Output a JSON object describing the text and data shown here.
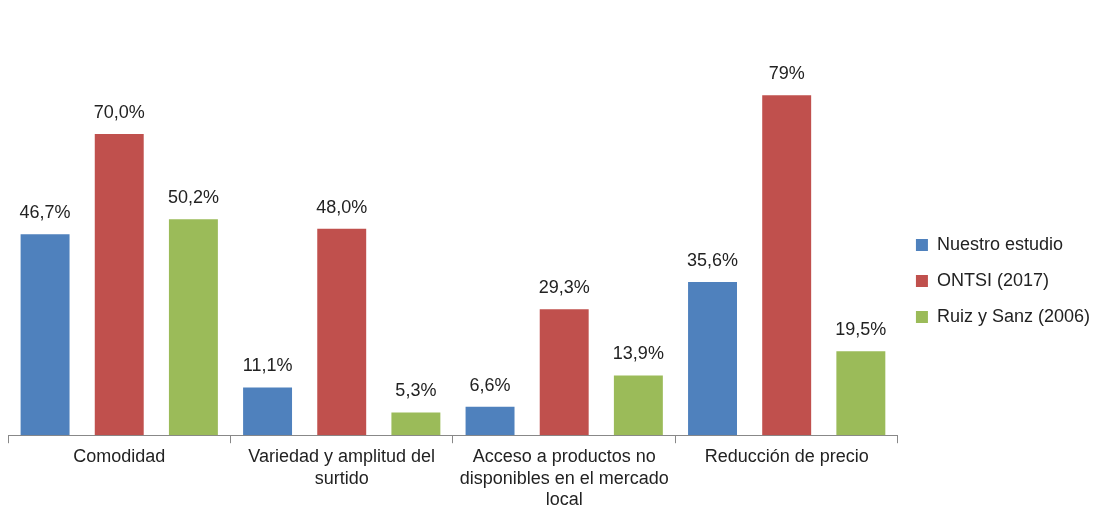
{
  "chart_data": {
    "type": "bar",
    "categories": [
      "Comodidad",
      "Variedad y amplitud del surtido",
      "Acceso a productos no disponibles en el mercado local",
      "Reducción de precio"
    ],
    "series": [
      {
        "name": "Nuestro estudio",
        "color": "#4f81bd",
        "values": [
          46.7,
          11.1,
          6.6,
          35.6
        ],
        "value_labels": [
          "46,7%",
          "11,1%",
          "6,6%",
          "35,6%"
        ]
      },
      {
        "name": "ONTSI (2017)",
        "color": "#c0504d",
        "values": [
          70.0,
          48.0,
          29.3,
          79
        ],
        "value_labels": [
          "70,0%",
          "48,0%",
          "29,3%",
          "79%"
        ]
      },
      {
        "name": "Ruiz y Sanz (2006)",
        "color": "#9bbb59",
        "values": [
          50.2,
          5.3,
          13.9,
          19.5
        ],
        "value_labels": [
          "50,2%",
          "5,3%",
          "13,9%",
          "19,5%"
        ]
      }
    ],
    "legend": "right",
    "grid": false
  }
}
